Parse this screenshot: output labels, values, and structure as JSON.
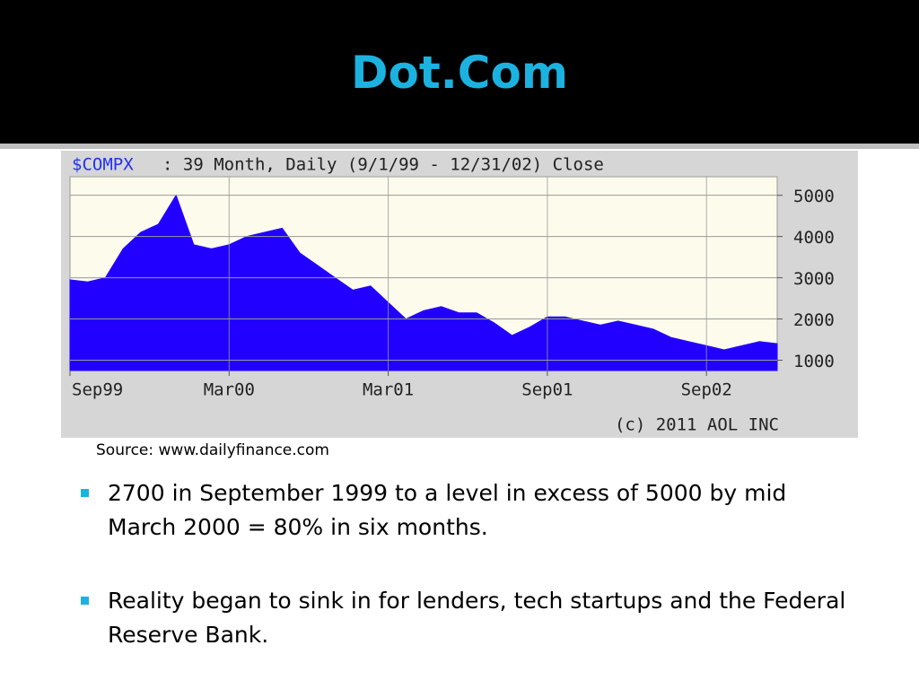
{
  "title": "Dot.Com",
  "chart_data": {
    "type": "area",
    "title": "$COMPX",
    "subtitle": ": 39 Month, Daily (9/1/99 - 12/31/02) Close",
    "footer": "(c) 2011 AOL INC",
    "x": [
      0,
      1,
      2,
      3,
      4,
      5,
      6,
      7,
      8,
      9,
      10,
      11,
      12,
      13,
      14,
      15,
      16,
      17,
      18,
      19,
      20,
      21,
      22,
      23,
      24,
      25,
      26,
      27,
      28,
      29,
      30,
      31,
      32,
      33,
      34,
      35,
      36,
      37,
      38,
      39,
      40
    ],
    "series": [
      {
        "color": "#2200ff",
        "values": [
          2950,
          2900,
          3000,
          3700,
          4100,
          4300,
          5000,
          3800,
          3700,
          3800,
          4000,
          4100,
          4200,
          3600,
          3300,
          3000,
          2700,
          2800,
          2400,
          2000,
          2200,
          2300,
          2150,
          2150,
          1900,
          1600,
          1800,
          2050,
          2050,
          1950,
          1850,
          1950,
          1850,
          1750,
          1550,
          1450,
          1350,
          1250,
          1350,
          1450,
          1400
        ]
      }
    ],
    "xlim": [
      0,
      40
    ],
    "xticks": [
      {
        "value": 0,
        "label": "Sep99"
      },
      {
        "value": 9,
        "label": "Mar00"
      },
      {
        "value": 18,
        "label": "Mar01"
      },
      {
        "value": 27,
        "label": "Sep01"
      },
      {
        "value": 36,
        "label": "Sep02"
      }
    ],
    "ylim": [
      750,
      5450
    ],
    "yticks": [
      1000,
      2000,
      3000,
      4000,
      5000
    ],
    "grid": true
  },
  "source": "Source: www.dailyfinance.com",
  "bullets": [
    "2700 in September 1999 to a level in excess of 5000 by mid March 2000 = 80% in six months.",
    "Reality began to sink in for lenders, tech startups and the Federal Reserve Bank."
  ]
}
